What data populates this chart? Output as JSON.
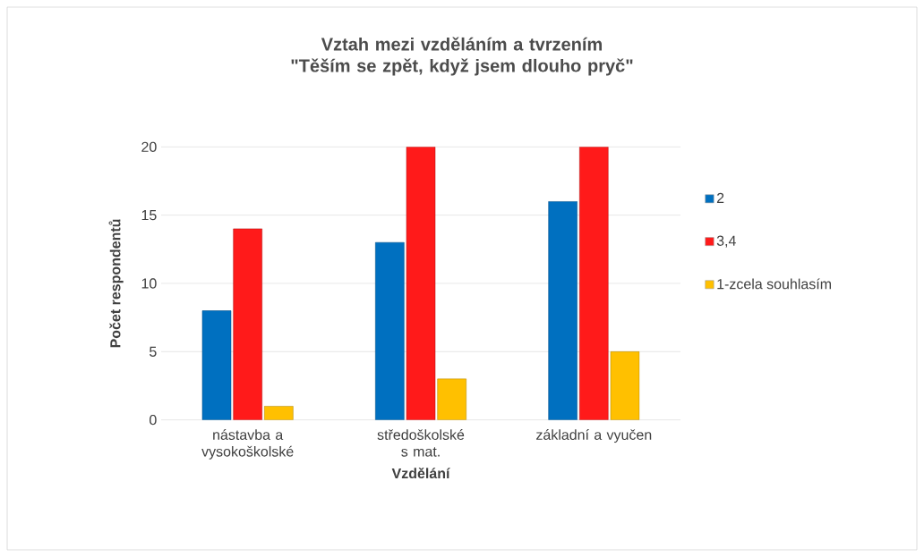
{
  "chart_data": {
    "type": "bar",
    "title": "Vztah mezi vzděláním a tvrzením \"Těším se zpět, když jsem dlouho pryč\"",
    "xlabel": "Vzdělání",
    "ylabel": "Počet respondentů",
    "categories": [
      "nástavba a vysokoškolské",
      "středoškolské s mat.",
      "základní a vyučen"
    ],
    "series": [
      {
        "name": "2",
        "color": "#0070c0",
        "values": [
          8,
          13,
          16
        ]
      },
      {
        "name": "3,4",
        "color": "#ff1a1a",
        "values": [
          14,
          20,
          20
        ]
      },
      {
        "name": "1-zcela souhlasím",
        "color": "#ffc000",
        "values": [
          1,
          3,
          5
        ]
      }
    ],
    "ylim": [
      0,
      20
    ],
    "yticks": [
      0,
      5,
      10,
      15,
      20
    ],
    "grid": "y",
    "legend": "right"
  }
}
